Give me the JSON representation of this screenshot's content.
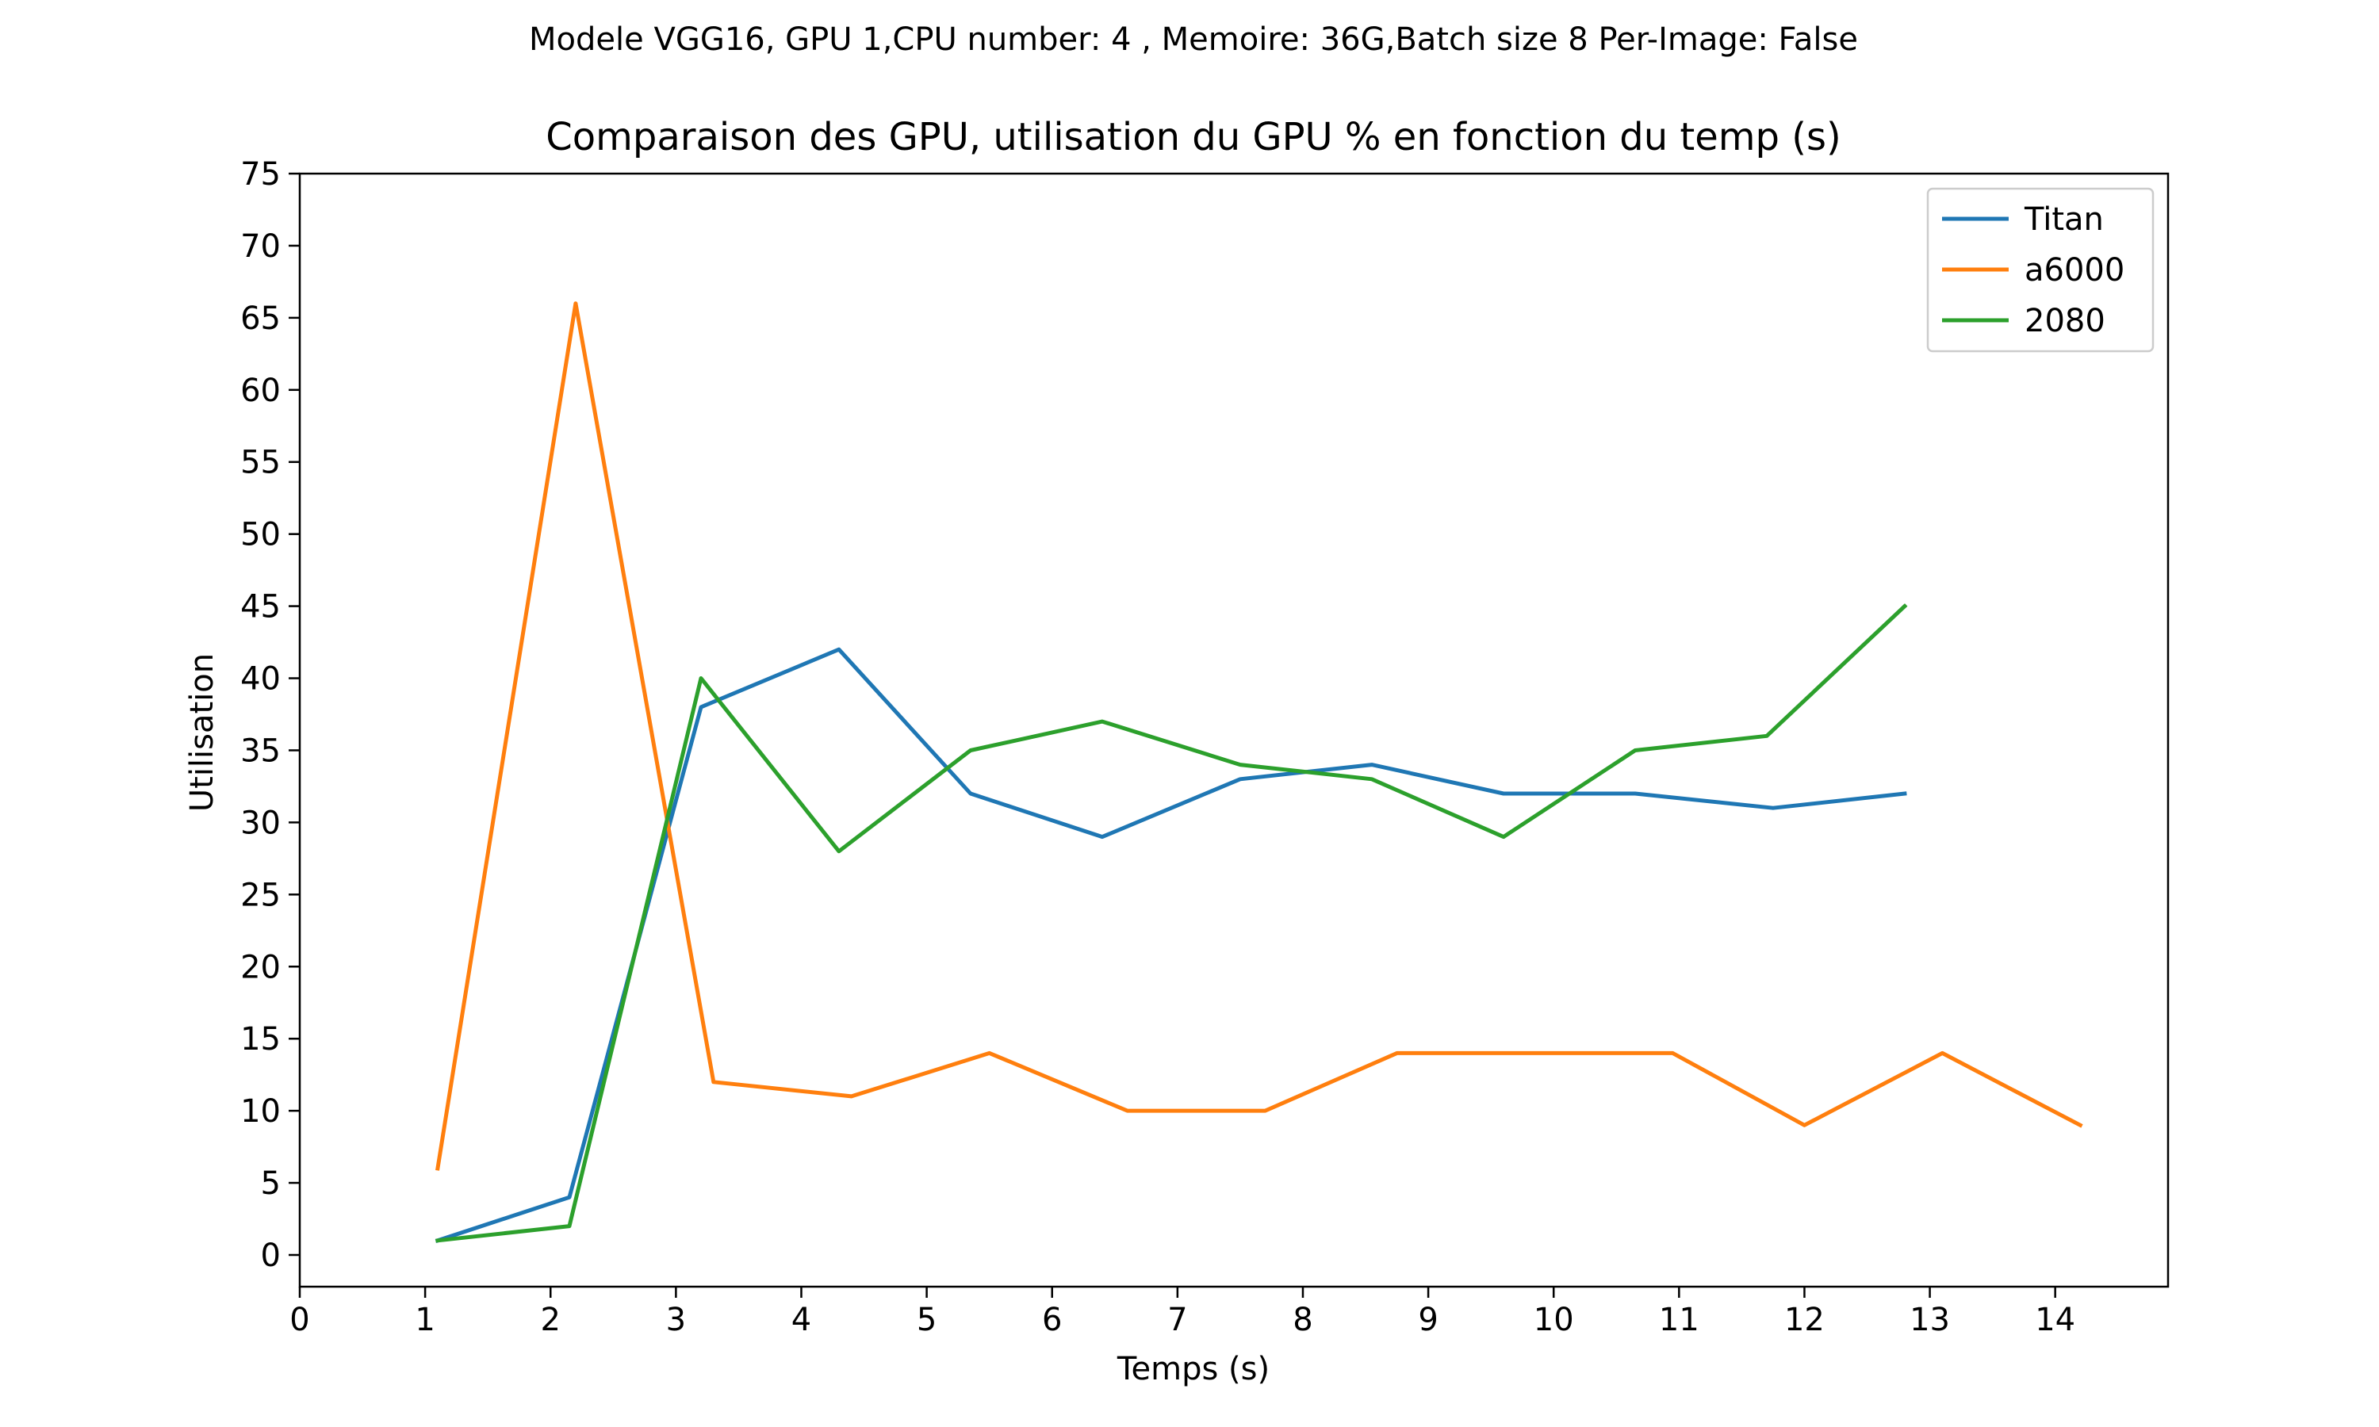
{
  "chart_data": {
    "type": "line",
    "suptitle": "Modele VGG16, GPU 1,CPU number: 4 , Memoire: 36G,Batch size 8 Per-Image: False",
    "title": "Comparaison des GPU, utilisation du GPU % en fonction du temp (s)",
    "xlabel": "Temps (s)",
    "ylabel": "Utilisation",
    "xlim": [
      0,
      14.9
    ],
    "ylim": [
      -2.2,
      75
    ],
    "xticks": [
      0,
      1,
      2,
      3,
      4,
      5,
      6,
      7,
      8,
      9,
      10,
      11,
      12,
      13,
      14
    ],
    "yticks": [
      0,
      5,
      10,
      15,
      20,
      25,
      30,
      35,
      40,
      45,
      50,
      55,
      60,
      65,
      70,
      75
    ],
    "grid": false,
    "legend_position": "top-right",
    "series": [
      {
        "name": "Titan",
        "color": "#1f77b4",
        "x": [
          1.1,
          2.15,
          3.2,
          4.3,
          5.35,
          6.4,
          7.5,
          8.55,
          9.6,
          10.65,
          11.75,
          12.8
        ],
        "y": [
          1,
          4,
          38,
          42,
          32,
          29,
          33,
          34,
          32,
          32,
          31,
          32
        ]
      },
      {
        "name": "a6000",
        "color": "#ff7f0e",
        "x": [
          1.1,
          2.2,
          3.3,
          4.4,
          5.5,
          6.6,
          7.7,
          8.75,
          9.85,
          10.95,
          12.0,
          13.1,
          14.2
        ],
        "y": [
          6,
          66,
          12,
          11,
          14,
          10,
          10,
          14,
          14,
          14,
          9,
          14,
          9
        ]
      },
      {
        "name": "2080",
        "color": "#2ca02c",
        "x": [
          1.1,
          2.15,
          3.2,
          4.3,
          5.35,
          6.4,
          7.5,
          8.55,
          9.6,
          10.65,
          11.7,
          12.8
        ],
        "y": [
          1,
          2,
          40,
          28,
          35,
          37,
          34,
          33,
          29,
          35,
          36,
          45
        ]
      }
    ]
  }
}
